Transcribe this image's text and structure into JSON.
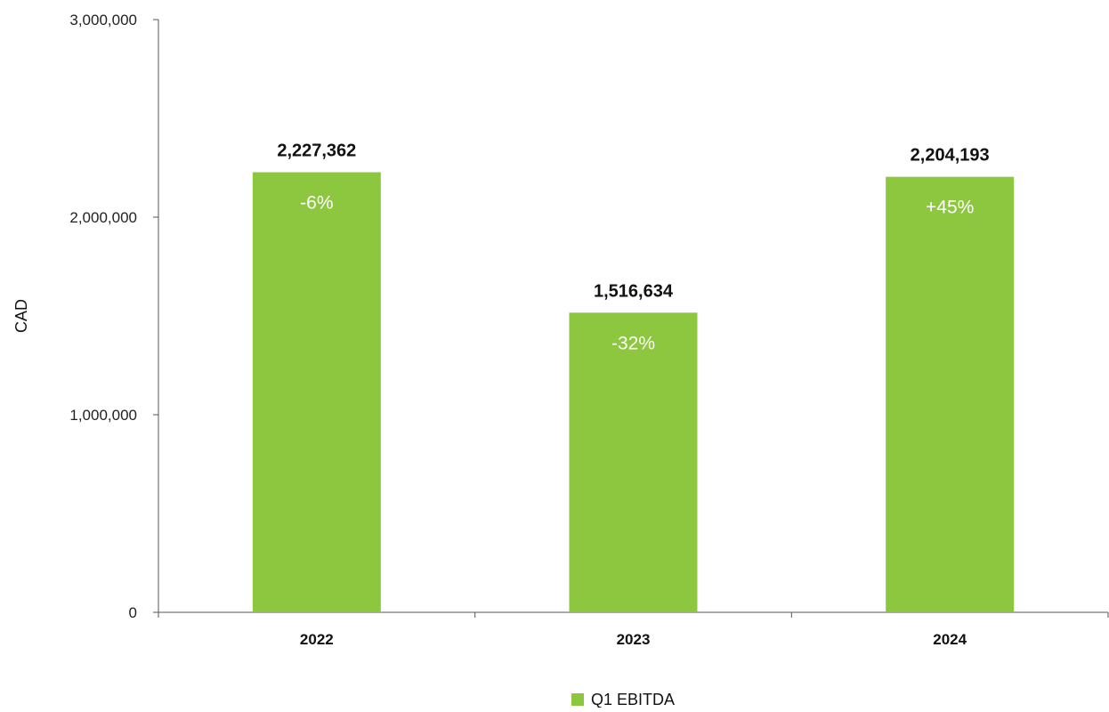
{
  "chart_data": {
    "type": "bar",
    "categories": [
      "2022",
      "2023",
      "2024"
    ],
    "series": [
      {
        "name": "Q1 EBITDA",
        "values": [
          2227362,
          1516634,
          2204193
        ],
        "value_labels": [
          "2,227,362",
          "1,516,634",
          "2,204,193"
        ],
        "change_labels": [
          "-6%",
          "-32%",
          "+45%"
        ]
      }
    ],
    "ylabel": "CAD",
    "xlabel": "",
    "ylim": [
      0,
      3000000
    ],
    "yticks": [
      0,
      1000000,
      2000000,
      3000000
    ],
    "ytick_labels": [
      "0",
      "1,000,000",
      "2,000,000",
      "3,000,000"
    ],
    "grid": false,
    "legend_position": "bottom-center",
    "colors": {
      "bar": "#8dc63f",
      "axis": "#555555",
      "text": "#111111",
      "bar_text": "#ffffff"
    }
  }
}
